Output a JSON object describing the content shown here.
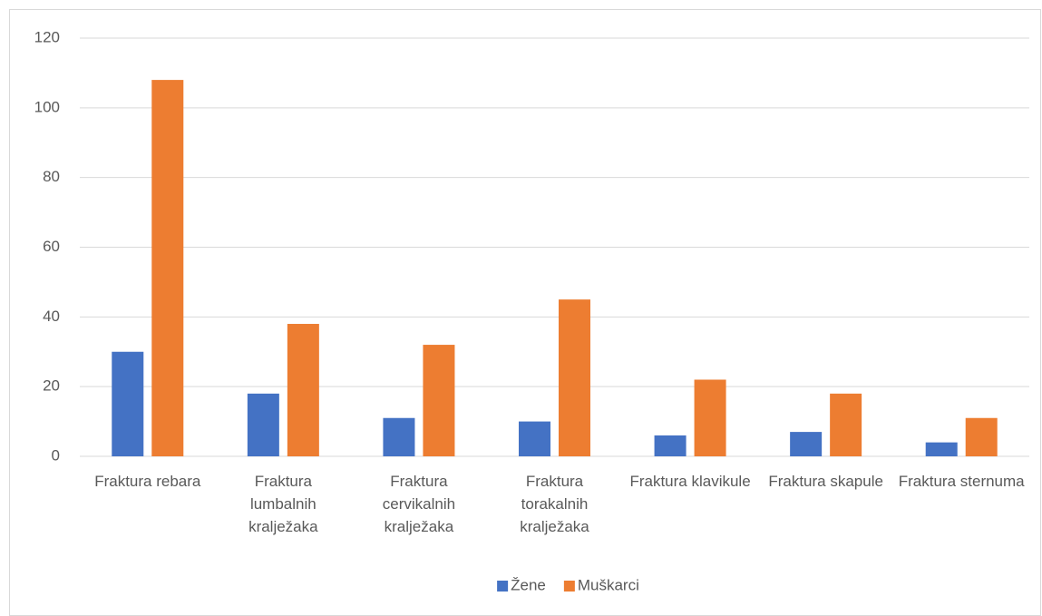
{
  "chart_data": {
    "type": "bar",
    "categories": [
      "Fraktura rebara",
      "Fraktura lumbalnih kralježaka",
      "Fraktura cervikalnih kralježaka",
      "Fraktura torakalnih kralježaka",
      "Fraktura klavikule",
      "Fraktura skapule",
      "Fraktura sternuma"
    ],
    "series": [
      {
        "name": "Žene",
        "color": "#4472c4",
        "values": [
          30,
          18,
          11,
          10,
          6,
          7,
          4
        ]
      },
      {
        "name": "Muškarci",
        "color": "#ed7d31",
        "values": [
          108,
          38,
          32,
          45,
          22,
          18,
          11
        ]
      }
    ],
    "ylim": [
      0,
      120
    ],
    "yticks": [
      0,
      20,
      40,
      60,
      80,
      100,
      120
    ],
    "grid": true,
    "legend": "bottom"
  }
}
